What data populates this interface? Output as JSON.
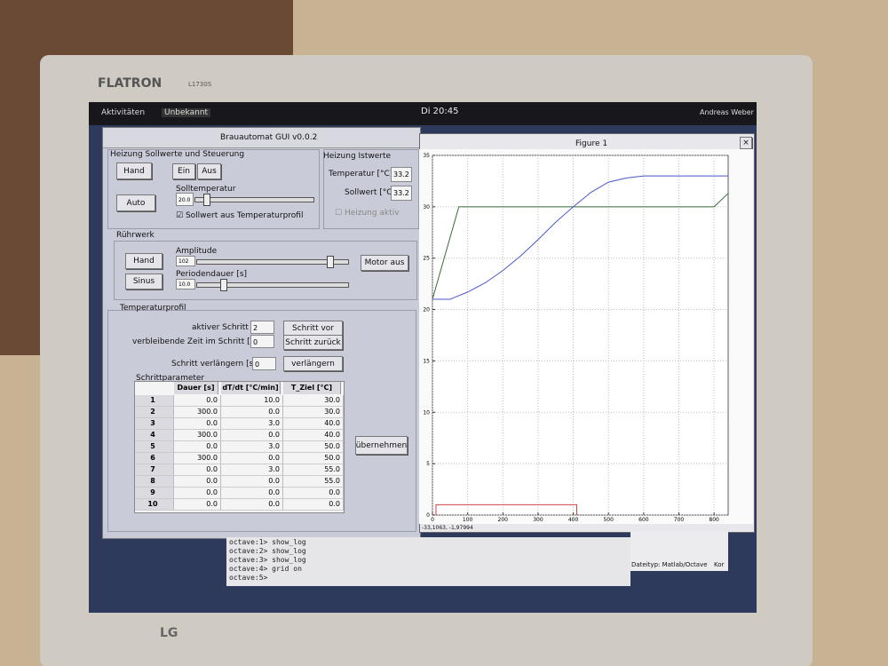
{
  "monitor": {
    "brand": "FLATRON",
    "model": "L1730S",
    "logo": "LG"
  },
  "topbar": {
    "activities": "Aktivitäten",
    "app": "Unbekannt",
    "clock": "Di 20:45",
    "user": "Andreas Weber"
  },
  "gui": {
    "title": "Brauautomat GUI v0.0.2",
    "heizung_soll": {
      "title": "Heizung Sollwerte und Steuerung",
      "hand": "Hand",
      "ein": "Ein",
      "aus": "Aus",
      "auto": "Auto",
      "slider_label": "Solltemperatur",
      "slider_value": "20.0",
      "checkbox": "Sollwert aus Temperaturprofil"
    },
    "heizung_ist": {
      "title": "Heizung Istwerte",
      "temp_label": "Temperatur [°C]",
      "temp_value": "33.2",
      "soll_label": "Sollwert [°C]",
      "soll_value": "33.2",
      "aktiv": "Heizung aktiv"
    },
    "ruehrwerk": {
      "title": "Rührwerk",
      "hand": "Hand",
      "sinus": "Sinus",
      "amp_label": "Amplitude",
      "amp_value": "102",
      "period_label": "Periodendauer [s]",
      "period_value": "10.0",
      "motor": "Motor aus"
    },
    "profil": {
      "title": "Temperaturprofil",
      "step_label": "aktiver Schritt",
      "step_value": "2",
      "next": "Schritt vor",
      "remain_label": "verbleibende Zeit im Schritt [s]",
      "remain_value": "0",
      "prev": "Schritt zurück",
      "extend_label": "Schritt verlängern [s]",
      "extend_value": "0",
      "extend": "verlängern",
      "params": "Schrittparameter",
      "apply": "übernehmen"
    },
    "table": {
      "headers": [
        "Dauer [s]",
        "dT/dt [°C/min]",
        "T_Ziel [°C]"
      ],
      "rows": [
        [
          "1",
          "0.0",
          "10.0",
          "30.0"
        ],
        [
          "2",
          "300.0",
          "0.0",
          "30.0"
        ],
        [
          "3",
          "0.0",
          "3.0",
          "40.0"
        ],
        [
          "4",
          "300.0",
          "0.0",
          "40.0"
        ],
        [
          "5",
          "0.0",
          "3.0",
          "50.0"
        ],
        [
          "6",
          "300.0",
          "0.0",
          "50.0"
        ],
        [
          "7",
          "0.0",
          "3.0",
          "55.0"
        ],
        [
          "8",
          "0.0",
          "0.0",
          "55.0"
        ],
        [
          "9",
          "0.0",
          "0.0",
          "0.0"
        ],
        [
          "10",
          "0.0",
          "0.0",
          "0.0"
        ]
      ]
    }
  },
  "figure": {
    "title": "Figure 1",
    "status": "-33,1063, -1,97994",
    "xlim": [
      0,
      840
    ],
    "ylim": [
      0,
      35
    ],
    "xticks": [
      0,
      100,
      200,
      300,
      400,
      500,
      600,
      700,
      800
    ],
    "yticks": [
      0,
      5,
      10,
      15,
      20,
      25,
      30,
      35
    ],
    "grid": true,
    "series": [
      {
        "color": "#3a6a3a",
        "x": [
          0,
          75,
          800,
          840
        ],
        "y": [
          21,
          30,
          30,
          31.3
        ]
      },
      {
        "color": "#4a55c8",
        "x": [
          0,
          50,
          100,
          150,
          200,
          250,
          300,
          350,
          400,
          450,
          500,
          550,
          600,
          700,
          840
        ],
        "y": [
          21,
          21,
          21.7,
          22.6,
          23.8,
          25.2,
          26.8,
          28.5,
          30,
          31.4,
          32.4,
          32.8,
          33,
          33,
          33
        ]
      },
      {
        "color": "#d04040",
        "x": [
          10,
          10,
          410,
          410
        ],
        "y": [
          0,
          1,
          1,
          0
        ]
      }
    ]
  },
  "terminal": {
    "lines": [
      "octave:1> show_log",
      "octave:2> show_log",
      "octave:3> show_log",
      "octave:4> grid on",
      "octave:5> "
    ],
    "filetype": "Dateityp: Matlab/Octave",
    "extra": "Kor"
  }
}
